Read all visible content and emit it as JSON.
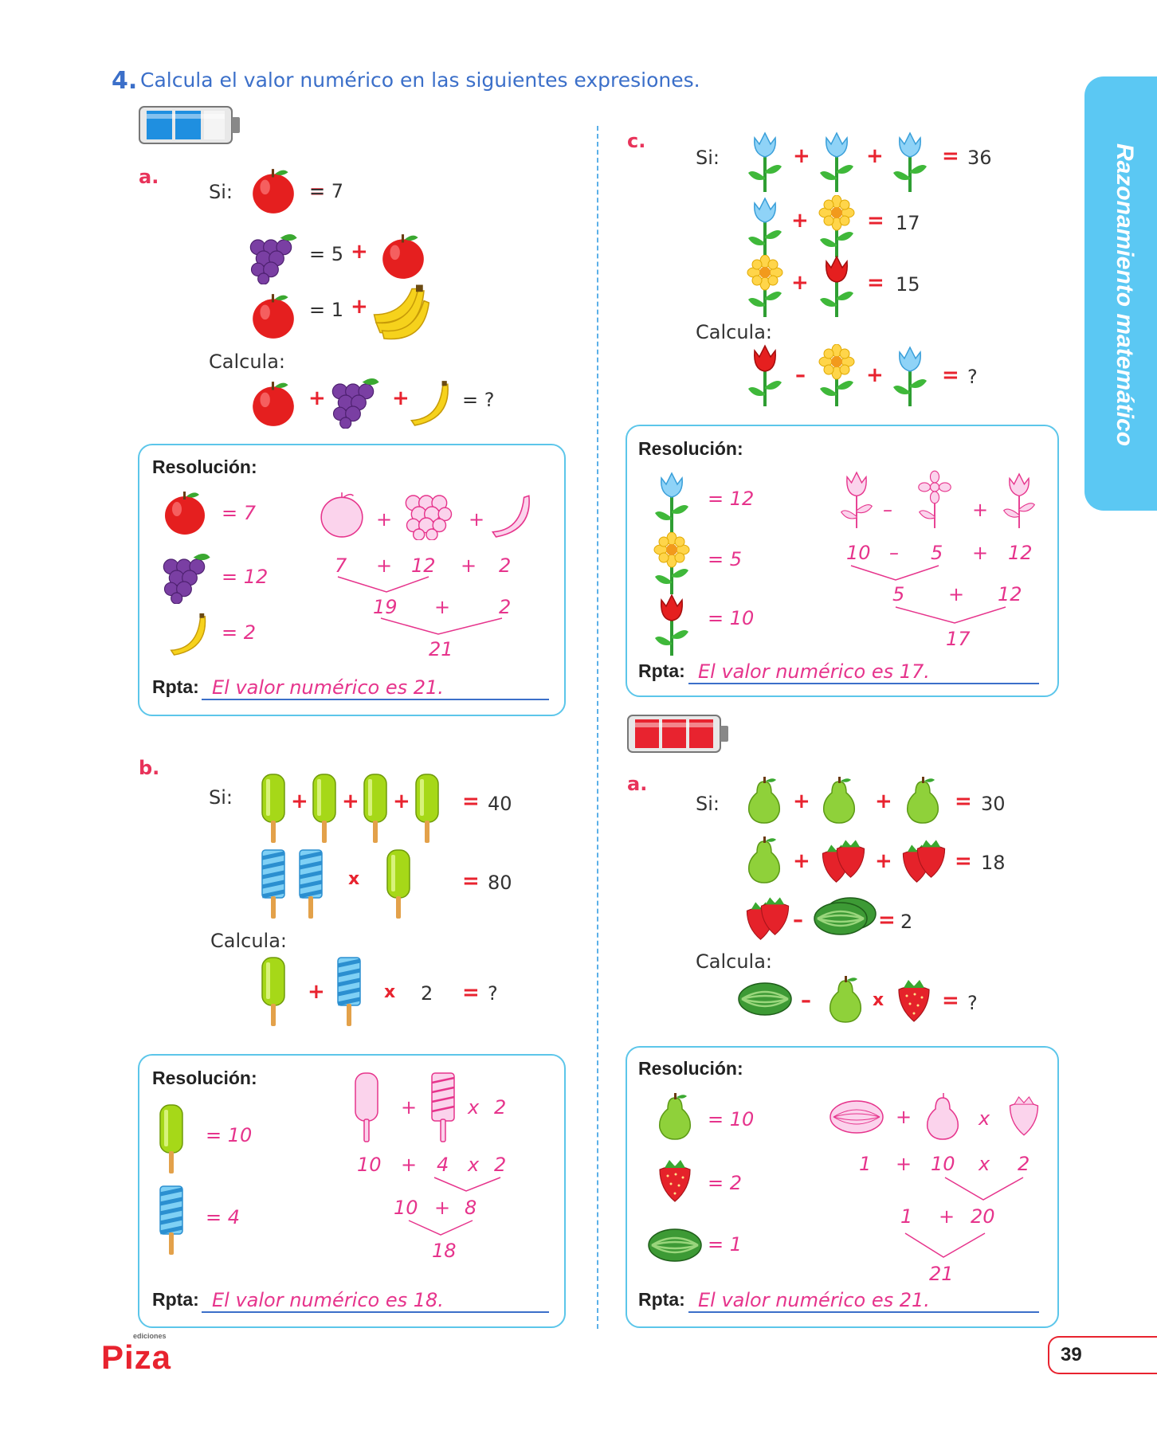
{
  "header": {
    "question_number": "4.",
    "question_text": "Calcula el valor numérico en las siguientes expresiones."
  },
  "side_tab": {
    "label": "Razonamiento matemático"
  },
  "footer": {
    "logo": "Piza",
    "logo_small": "ediciones",
    "page_number": "39"
  },
  "common": {
    "si": "Si:",
    "calcula": "Calcula:",
    "resolucion": "Resolución:",
    "rpta": "Rpta:"
  },
  "level_indicators": {
    "left_blue_filled": 2,
    "right_red_filled": 3,
    "cells": 3,
    "blue": "#1f8fe0",
    "red": "#e8232f"
  },
  "problem_a_left": {
    "label": "a.",
    "eq1": "= 7",
    "eq2": "= 5",
    "eq3": "= 1",
    "question": "= ?",
    "res": {
      "apple": "7",
      "grapes": "12",
      "banana": "2",
      "r1": [
        "7",
        "12",
        "2"
      ],
      "r2": [
        "19",
        "2"
      ],
      "r3": "21"
    },
    "answer": "El valor numérico es 21."
  },
  "problem_b_left": {
    "label": "b.",
    "eq1": "40",
    "eq2": "80",
    "mult": "2",
    "question": "?",
    "res": {
      "green": "10",
      "blue": "4",
      "r1": [
        "10",
        "4",
        "2"
      ],
      "r2": [
        "10",
        "8"
      ],
      "r3": "18"
    },
    "answer": "El valor numérico es 18."
  },
  "problem_c_right": {
    "label": "c.",
    "eq1": "36",
    "eq2": "17",
    "eq3": "15",
    "question": "?",
    "res": {
      "blue": "12",
      "yellow": "5",
      "red": "10",
      "r1": [
        "10",
        "5",
        "12"
      ],
      "r2": [
        "5",
        "12"
      ],
      "r3": "17"
    },
    "answer": "El valor numérico es 17."
  },
  "problem_a_right": {
    "label": "a.",
    "eq1": "30",
    "eq2": "18",
    "eq3": "2",
    "question": "?",
    "res": {
      "pear": "10",
      "strawberry": "2",
      "watermelon": "1",
      "r1": [
        "1",
        "10",
        "2"
      ],
      "r2": [
        "1",
        "20"
      ],
      "r3": "21"
    },
    "answer": "El valor numérico es 21."
  }
}
